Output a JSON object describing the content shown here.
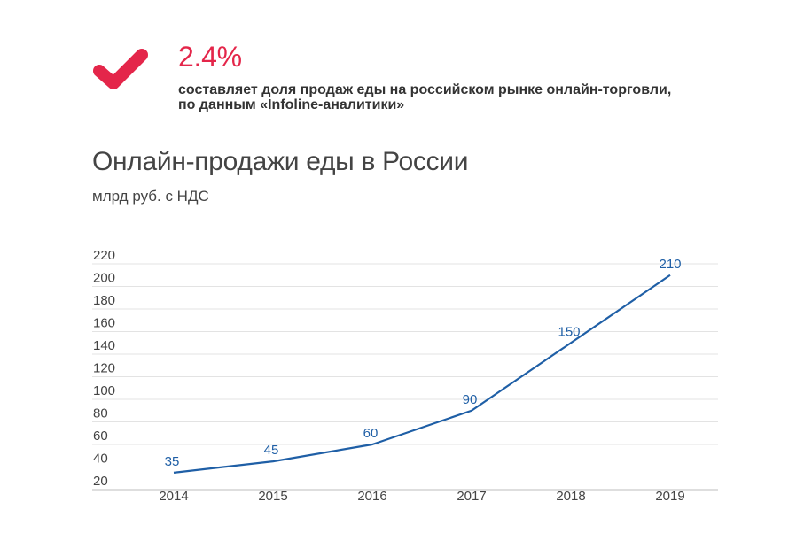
{
  "highlight": {
    "value": "2.4%",
    "description_line1": "составляет доля продаж еды на российском рынке онлайн-торговли,",
    "description_line2": "по данным «Infoline-аналитики»",
    "icon": "checkmark-icon",
    "accent_color": "#e4264a"
  },
  "chart_data": {
    "type": "line",
    "title": "Онлайн-продажи еды в России",
    "subtitle": "млрд руб. с НДС",
    "xlabel": "",
    "ylabel": "",
    "categories": [
      "2014",
      "2015",
      "2016",
      "2017",
      "2018",
      "2019"
    ],
    "series": [
      {
        "values": [
          35,
          45,
          60,
          90,
          150,
          210
        ],
        "color": "#1f5fa6"
      }
    ],
    "data_labels": [
      "35",
      "45",
      "60",
      "90",
      "150",
      "210"
    ],
    "ylim": [
      20,
      220
    ],
    "yticks": [
      "20",
      "40",
      "60",
      "80",
      "100",
      "120",
      "140",
      "160",
      "180",
      "200",
      "220"
    ],
    "grid": true,
    "legend": "none"
  }
}
